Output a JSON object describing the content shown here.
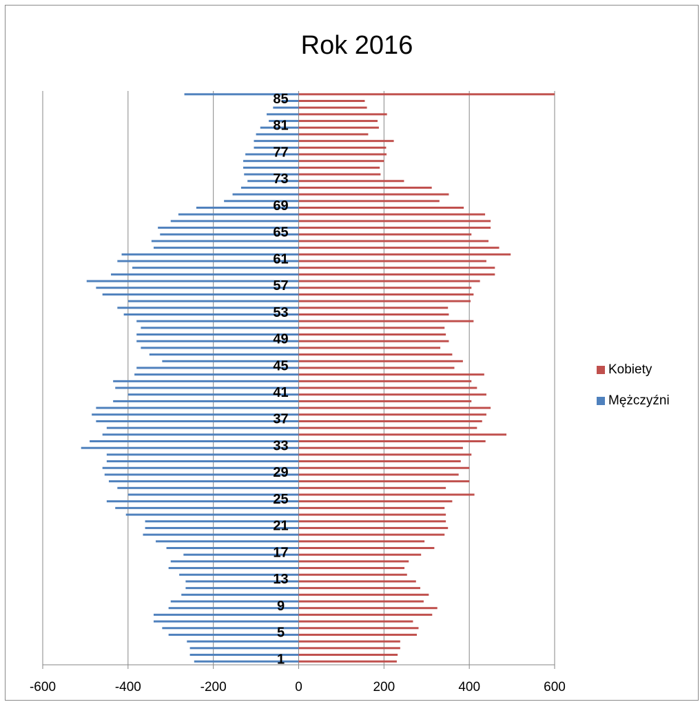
{
  "chart_data": {
    "type": "bar",
    "orientation": "horizontal",
    "title": "Rok 2016",
    "categories": [
      "1",
      null,
      null,
      null,
      "5",
      null,
      null,
      null,
      "9",
      null,
      null,
      null,
      "13",
      null,
      null,
      null,
      "17",
      null,
      null,
      null,
      "21",
      null,
      null,
      null,
      "25",
      null,
      null,
      null,
      "29",
      null,
      null,
      null,
      "33",
      null,
      null,
      null,
      "37",
      null,
      null,
      null,
      "41",
      null,
      null,
      null,
      "45",
      null,
      null,
      null,
      "49",
      null,
      null,
      null,
      "53",
      null,
      null,
      null,
      "57",
      null,
      null,
      null,
      "61",
      null,
      null,
      null,
      "65",
      null,
      null,
      null,
      "69",
      null,
      null,
      null,
      "73",
      null,
      null,
      null,
      "77",
      null,
      null,
      null,
      "81",
      null,
      null,
      null,
      "85",
      null
    ],
    "series": [
      {
        "name": "Kobiety",
        "color": "#c0504d",
        "values": [
          230,
          232,
          238,
          238,
          277,
          281,
          268,
          313,
          325,
          293,
          305,
          285,
          275,
          254,
          248,
          258,
          287,
          318,
          295,
          342,
          350,
          345,
          345,
          342,
          360,
          412,
          345,
          400,
          375,
          400,
          380,
          405,
          385,
          438,
          487,
          418,
          430,
          440,
          450,
          405,
          440,
          418,
          405,
          435,
          365,
          385,
          360,
          332,
          352,
          345,
          342,
          410,
          352,
          350,
          403,
          410,
          405,
          425,
          460,
          460,
          440,
          497,
          470,
          445,
          405,
          450,
          450,
          437,
          387,
          330,
          352,
          312,
          247,
          192,
          190,
          200,
          206,
          205,
          223,
          163,
          188,
          185,
          207,
          160,
          155,
          600
        ]
      },
      {
        "name": "Mężczyźni",
        "color": "#4f81bd",
        "values": [
          -245,
          -255,
          -255,
          -262,
          -305,
          -320,
          -340,
          -340,
          -305,
          -300,
          -275,
          -265,
          -265,
          -280,
          -305,
          -300,
          -270,
          -310,
          -335,
          -365,
          -360,
          -360,
          -405,
          -430,
          -450,
          -400,
          -425,
          -445,
          -455,
          -460,
          -450,
          -450,
          -510,
          -490,
          -460,
          -450,
          -475,
          -485,
          -475,
          -435,
          -400,
          -430,
          -435,
          -385,
          -380,
          -320,
          -350,
          -370,
          -380,
          -380,
          -370,
          -380,
          -410,
          -425,
          -400,
          -460,
          -475,
          -497,
          -440,
          -390,
          -425,
          -415,
          -340,
          -345,
          -325,
          -330,
          -300,
          -282,
          -240,
          -175,
          -155,
          -135,
          -120,
          -128,
          -130,
          -130,
          -125,
          -105,
          -105,
          -100,
          -90,
          -70,
          -75,
          -60,
          -40,
          -268
        ]
      }
    ],
    "xlim": [
      -600,
      600
    ],
    "xticks": [
      -600,
      -400,
      -200,
      0,
      200,
      400,
      600
    ],
    "grid": true,
    "legend": "right"
  }
}
